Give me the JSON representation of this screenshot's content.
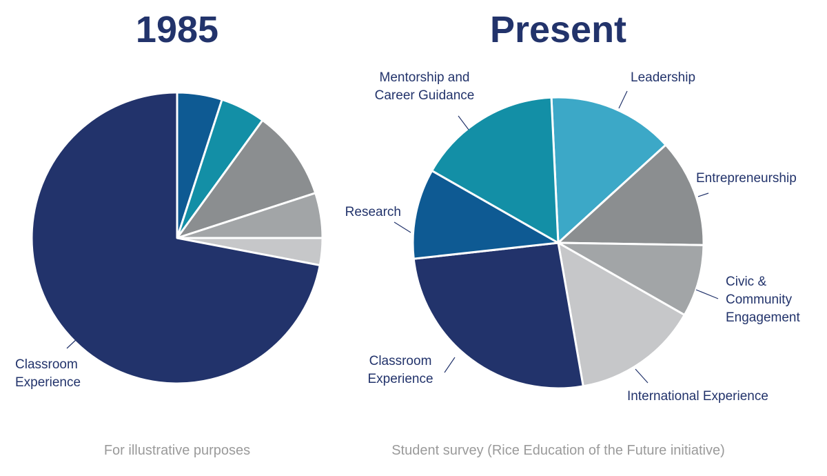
{
  "chart_data": [
    {
      "type": "pie",
      "title": "1985",
      "subtitle": "For illustrative purposes",
      "categories": [
        null,
        null,
        null,
        null,
        null,
        "Classroom Experience"
      ],
      "values": [
        5,
        5,
        10,
        5,
        3,
        72
      ],
      "colors": [
        "#0e5a93",
        "#138fa6",
        "#8b8e90",
        "#a2a5a7",
        "#c6c7c9",
        "#22336b"
      ]
    },
    {
      "type": "pie",
      "title": "Present",
      "subtitle": "Student survey (Rice Education of the Future initiative)",
      "categories": [
        "Leadership",
        "Entrepreneurship",
        "Civic & Community Engagement",
        "International Experience",
        "Classroom Experience",
        "Research",
        "Mentorship and Career Guidance"
      ],
      "values": [
        14,
        12,
        8,
        14,
        26,
        10,
        16
      ],
      "colors": [
        "#3ca8c7",
        "#8b8e90",
        "#a2a5a7",
        "#c6c7c9",
        "#22336b",
        "#0e5a93",
        "#138fa6"
      ]
    }
  ]
}
